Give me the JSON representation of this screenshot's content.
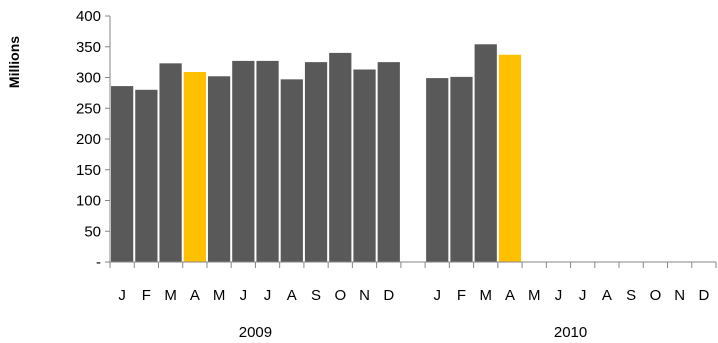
{
  "chart_data": {
    "type": "bar",
    "title": "",
    "xlabel": "",
    "ylabel": "Millions",
    "ylim": [
      0,
      400
    ],
    "yticks": [
      {
        "value": 0,
        "label": "-"
      },
      {
        "value": 50,
        "label": "50"
      },
      {
        "value": 100,
        "label": "100"
      },
      {
        "value": 150,
        "label": "150"
      },
      {
        "value": 200,
        "label": "200"
      },
      {
        "value": 250,
        "label": "250"
      },
      {
        "value": 300,
        "label": "300"
      },
      {
        "value": 350,
        "label": "350"
      },
      {
        "value": 400,
        "label": "400"
      }
    ],
    "grid": false,
    "legend": "none",
    "colors": {
      "default": "#595959",
      "highlight": "#FFC000"
    },
    "years": [
      {
        "label": "2009",
        "months": [
          "J",
          "F",
          "M",
          "A",
          "M",
          "J",
          "J",
          "A",
          "S",
          "O",
          "N",
          "D"
        ],
        "values": [
          286,
          280,
          323,
          309,
          302,
          327,
          327,
          297,
          325,
          340,
          313,
          325
        ],
        "highlight": [
          false,
          false,
          false,
          true,
          false,
          false,
          false,
          false,
          false,
          false,
          false,
          false
        ]
      },
      {
        "label": "2010",
        "months": [
          "J",
          "F",
          "M",
          "A",
          "M",
          "J",
          "J",
          "A",
          "S",
          "O",
          "N",
          "D"
        ],
        "values": [
          299,
          301,
          354,
          337,
          null,
          null,
          null,
          null,
          null,
          null,
          null,
          null
        ],
        "highlight": [
          false,
          false,
          false,
          true,
          false,
          false,
          false,
          false,
          false,
          false,
          false,
          false
        ]
      }
    ]
  }
}
